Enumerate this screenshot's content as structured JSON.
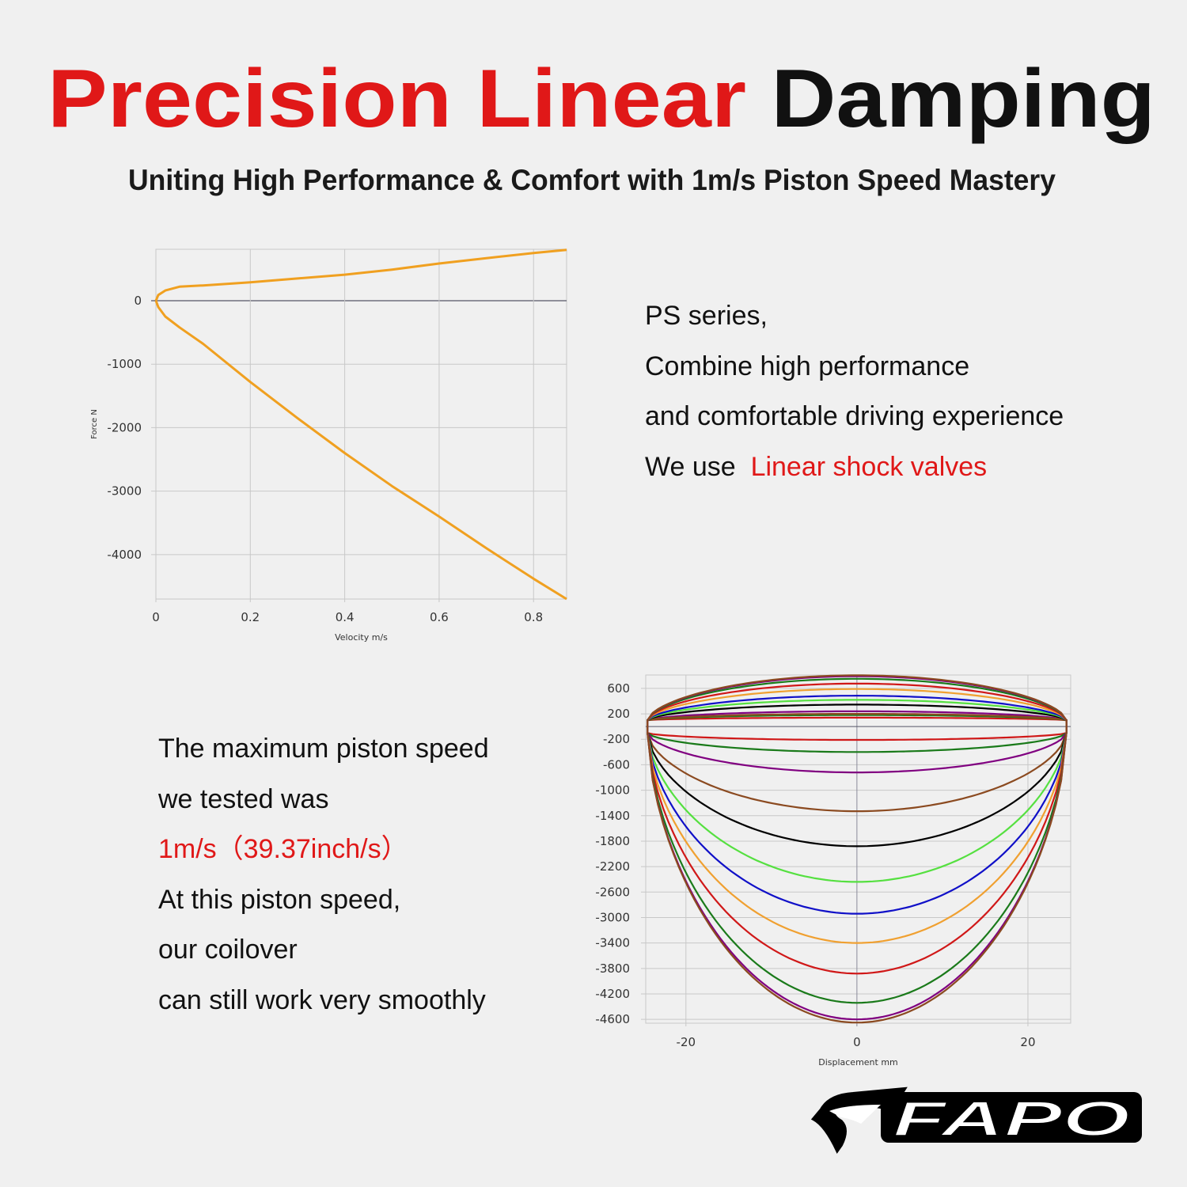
{
  "header": {
    "title_red": "Precision Linear",
    "title_black": "Damping",
    "subtitle": "Uniting High Performance & Comfort with 1m/s Piston Speed Mastery"
  },
  "right_copy": {
    "line1": "PS series,",
    "line2": "Combine high performance",
    "line3": "and comfortable driving experience",
    "line4_prefix": "We use",
    "line4_highlight": "Linear shock valves"
  },
  "left_copy": {
    "line1": "The maximum piston speed",
    "line2": "we tested was",
    "line3": "1m/s（39.37inch/s）",
    "line4": "At this piston speed,",
    "line5": "our coilover",
    "line6": "can still work very smoothly"
  },
  "logo": {
    "text": "FAPO"
  },
  "colors": {
    "accent": "#e01818",
    "background": "#f0f0f0",
    "curve": "#f0a020"
  },
  "chart_data": [
    {
      "type": "line",
      "xlabel": "Velocity m/s",
      "ylabel": "Force N",
      "xlim": [
        0,
        0.87
      ],
      "ylim": [
        -4700,
        810
      ],
      "xticks": [
        "0",
        "0.2",
        "0.4",
        "0.6",
        "0.8"
      ],
      "yticks": [
        "0",
        "-1000",
        "-2000",
        "-3000",
        "-4000"
      ],
      "grid": true,
      "series": [
        {
          "color": "#f0a020",
          "x": [
            0,
            0.005,
            0.02,
            0.05,
            0.1,
            0.2,
            0.3,
            0.4,
            0.5,
            0.6,
            0.7,
            0.8,
            0.87
          ],
          "y": [
            0,
            90,
            160,
            220,
            240,
            290,
            350,
            410,
            490,
            585,
            670,
            750,
            800
          ]
        },
        {
          "color": "#f0a020",
          "x": [
            0,
            0.005,
            0.02,
            0.05,
            0.1,
            0.2,
            0.3,
            0.4,
            0.5,
            0.6,
            0.7,
            0.8,
            0.87
          ],
          "y": [
            0,
            -100,
            -250,
            -420,
            -680,
            -1280,
            -1850,
            -2400,
            -2920,
            -3400,
            -3900,
            -4380,
            -4700
          ]
        }
      ]
    },
    {
      "type": "line",
      "xlabel": "Displacement mm",
      "ylabel": "",
      "xlim": [
        -24.7,
        25
      ],
      "ylim": [
        -4660,
        810
      ],
      "xticks": [
        "-20",
        "0",
        "20"
      ],
      "yticks": [
        "600",
        "200",
        "-200",
        "-600",
        "-1000",
        "-1400",
        "-1800",
        "-2200",
        "-2600",
        "-3000",
        "-3400",
        "-3800",
        "-4200",
        "-4600"
      ],
      "grid": true,
      "series": [
        {
          "color": "#d01818",
          "rebound_peak": 140,
          "compression_peak": -210
        },
        {
          "color": "#1a7a1a",
          "rebound_peak": 180,
          "compression_peak": -400
        },
        {
          "color": "#800080",
          "rebound_peak": 240,
          "compression_peak": -720
        },
        {
          "color": "#8b4a20",
          "rebound_peak": 200,
          "compression_peak": -1330
        },
        {
          "color": "#000000",
          "rebound_peak": 345,
          "compression_peak": -1880
        },
        {
          "color": "#55e040",
          "rebound_peak": 420,
          "compression_peak": -2440
        },
        {
          "color": "#1010c8",
          "rebound_peak": 485,
          "compression_peak": -2940
        },
        {
          "color": "#f0a030",
          "rebound_peak": 590,
          "compression_peak": -3400
        },
        {
          "color": "#d01818",
          "rebound_peak": 675,
          "compression_peak": -3880
        },
        {
          "color": "#1a7a1a",
          "rebound_peak": 750,
          "compression_peak": -4340
        },
        {
          "color": "#800080",
          "rebound_peak": 790,
          "compression_peak": -4600
        },
        {
          "color": "#8b4a20",
          "rebound_peak": 805,
          "compression_peak": -4650
        }
      ]
    }
  ]
}
